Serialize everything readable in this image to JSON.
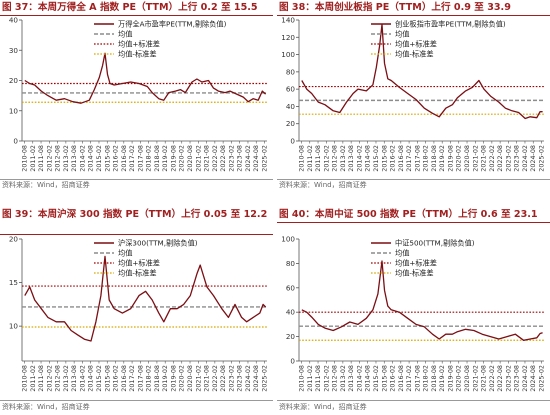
{
  "source_text": "资料来源：Wind，招商证券",
  "colors": {
    "series": "#7b0f14",
    "mean": "#8c8c8c",
    "upper": "#a00000",
    "lower": "#d9a600",
    "title": "#a01f1f"
  },
  "chart_data": [
    {
      "type": "line",
      "title": "图 37：本周万得全 A 指数 PE（TTM）上行 0.2 至 15.5",
      "x_ticks": [
        "2010-08",
        "2011-02",
        "2011-08",
        "2012-02",
        "2012-08",
        "2013-02",
        "2013-08",
        "2014-02",
        "2014-08",
        "2015-02",
        "2015-08",
        "2016-02",
        "2016-08",
        "2017-02",
        "2017-08",
        "2018-02",
        "2018-08",
        "2019-02",
        "2019-08",
        "2020-02",
        "2020-08",
        "2021-02",
        "2021-08",
        "2022-02",
        "2022-08",
        "2023-02",
        "2023-08",
        "2024-02",
        "2024-08",
        "2025-02"
      ],
      "ylim": [
        0,
        40
      ],
      "y_ticks": [
        0,
        10,
        20,
        30,
        40
      ],
      "series": [
        {
          "name": "万得全A市盈率PE(TTM,剔除负值)",
          "x": [
            2010.6,
            2010.9,
            2011.2,
            2011.6,
            2012.0,
            2012.5,
            2013.0,
            2013.5,
            2014.0,
            2014.5,
            2014.8,
            2015.1,
            2015.3,
            2015.45,
            2015.6,
            2015.75,
            2016.0,
            2016.5,
            2017.0,
            2017.5,
            2018.0,
            2018.3,
            2018.7,
            2019.0,
            2019.3,
            2019.7,
            2020.0,
            2020.3,
            2020.7,
            2021.0,
            2021.3,
            2021.7,
            2022.0,
            2022.3,
            2022.7,
            2023.0,
            2023.4,
            2023.8,
            2024.1,
            2024.4,
            2024.7,
            2024.95,
            2025.15
          ],
          "y": [
            20.0,
            19.0,
            18.5,
            16.5,
            15.0,
            13.5,
            14.0,
            13.0,
            12.5,
            13.5,
            17.0,
            21.0,
            25.0,
            29.0,
            22.0,
            19.0,
            18.5,
            19.0,
            19.5,
            19.0,
            18.0,
            16.0,
            14.0,
            13.5,
            16.0,
            16.5,
            17.0,
            16.0,
            19.5,
            20.5,
            19.5,
            20.0,
            17.5,
            16.5,
            16.0,
            16.5,
            15.5,
            14.5,
            13.0,
            14.0,
            13.5,
            16.5,
            15.5
          ]
        }
      ],
      "mean": 15.9,
      "upper": 19.0,
      "lower": 12.8,
      "legend": [
        "万得全A市盈率PE(TTM,剔除负值)",
        "均值",
        "均值+标准差",
        "均值-标准差"
      ]
    },
    {
      "type": "line",
      "title": "图 38：本周创业板指 PE（TTM）上行 0.9 至 33.9",
      "x_ticks": [
        "2010-08",
        "2011-02",
        "2011-08",
        "2012-02",
        "2012-08",
        "2013-02",
        "2013-08",
        "2014-02",
        "2014-08",
        "2015-02",
        "2015-08",
        "2016-02",
        "2016-08",
        "2017-02",
        "2017-08",
        "2018-02",
        "2018-08",
        "2019-02",
        "2019-08",
        "2020-02",
        "2020-08",
        "2021-02",
        "2021-08",
        "2022-02",
        "2022-08",
        "2023-02",
        "2023-08",
        "2024-02",
        "2024-08",
        "2025-02"
      ],
      "ylim": [
        0,
        140
      ],
      "y_ticks": [
        0,
        20,
        40,
        60,
        80,
        100,
        120,
        140
      ],
      "series": [
        {
          "name": "创业板指市盈率PE(TTM,剔除负值)",
          "x": [
            2010.6,
            2010.9,
            2011.2,
            2011.6,
            2012.0,
            2012.5,
            2012.9,
            2013.3,
            2013.7,
            2014.0,
            2014.5,
            2014.9,
            2015.1,
            2015.3,
            2015.45,
            2015.6,
            2015.8,
            2016.0,
            2016.5,
            2017.0,
            2017.5,
            2018.0,
            2018.5,
            2018.9,
            2019.3,
            2019.7,
            2020.0,
            2020.5,
            2020.9,
            2021.3,
            2021.6,
            2022.0,
            2022.5,
            2022.9,
            2023.3,
            2023.7,
            2024.1,
            2024.4,
            2024.8,
            2025.0,
            2025.15
          ],
          "y": [
            70.0,
            60.0,
            55.0,
            45.0,
            42.0,
            35.0,
            33.0,
            45.0,
            55.0,
            60.0,
            58.0,
            65.0,
            85.0,
            110.0,
            135.0,
            90.0,
            72.0,
            70.0,
            62.0,
            55.0,
            48.0,
            38.0,
            32.0,
            28.0,
            38.0,
            42.0,
            50.0,
            58.0,
            62.0,
            70.0,
            60.0,
            52.0,
            45.0,
            38.0,
            35.0,
            33.0,
            26.0,
            28.0,
            27.0,
            34.0,
            33.9
          ]
        }
      ],
      "mean": 47.0,
      "upper": 63.0,
      "lower": 31.0,
      "legend": [
        "创业板指市盈率PE(TTM,剔除负值)",
        "均值",
        "均值+标准差",
        "均值-标准差"
      ]
    },
    {
      "type": "line",
      "title": "图 39：本周沪深 300 指数 PE（TTM）上行 0.05 至 12.2",
      "x_ticks": [
        "2010-08",
        "2011-02",
        "2011-08",
        "2012-02",
        "2012-08",
        "2013-02",
        "2013-08",
        "2014-02",
        "2014-08",
        "2015-02",
        "2015-08",
        "2016-02",
        "2016-08",
        "2017-02",
        "2017-08",
        "2018-02",
        "2018-08",
        "2019-02",
        "2019-08",
        "2020-02",
        "2020-08",
        "2021-02",
        "2021-08",
        "2022-02",
        "2022-08",
        "2023-02",
        "2023-08",
        "2024-02",
        "2024-08",
        "2025-02"
      ],
      "ylim": [
        6,
        20
      ],
      "y_ticks": [
        10,
        15,
        20
      ],
      "series": [
        {
          "name": "沪深300(TTM,剔除负值)",
          "x": [
            2010.6,
            2010.9,
            2011.2,
            2011.6,
            2012.0,
            2012.5,
            2013.0,
            2013.4,
            2013.8,
            2014.2,
            2014.6,
            2014.9,
            2015.2,
            2015.45,
            2015.7,
            2016.0,
            2016.5,
            2017.0,
            2017.5,
            2017.9,
            2018.3,
            2018.7,
            2019.0,
            2019.4,
            2019.8,
            2020.2,
            2020.6,
            2021.0,
            2021.2,
            2021.6,
            2022.0,
            2022.5,
            2022.9,
            2023.3,
            2023.7,
            2024.0,
            2024.4,
            2024.8,
            2025.0,
            2025.15
          ],
          "y": [
            13.5,
            14.5,
            13.0,
            12.0,
            11.0,
            10.5,
            10.5,
            9.5,
            9.0,
            8.5,
            8.3,
            10.5,
            13.5,
            18.0,
            13.0,
            12.0,
            11.5,
            12.0,
            13.5,
            14.0,
            13.0,
            11.5,
            10.5,
            12.0,
            12.0,
            12.5,
            13.5,
            16.0,
            17.0,
            14.5,
            13.5,
            12.0,
            11.0,
            12.5,
            11.0,
            10.5,
            11.0,
            11.5,
            12.5,
            12.2
          ]
        }
      ],
      "mean": 12.2,
      "upper": 14.6,
      "lower": 9.9,
      "legend": [
        "沪深300(TTM,剔除负值)",
        "均值",
        "均值+标准差",
        "均值-标准差"
      ]
    },
    {
      "type": "line",
      "title": "图 40：本周中证 500 指数 PE（TTM）上行 0.6 至 23.1",
      "x_ticks": [
        "2010-08",
        "2011-02",
        "2011-08",
        "2012-02",
        "2012-08",
        "2013-02",
        "2013-08",
        "2014-02",
        "2014-08",
        "2015-02",
        "2015-08",
        "2016-02",
        "2016-08",
        "2017-02",
        "2017-08",
        "2018-02",
        "2018-08",
        "2019-02",
        "2019-08",
        "2020-02",
        "2020-08",
        "2021-02",
        "2021-08",
        "2022-02",
        "2022-08",
        "2023-02",
        "2023-08",
        "2024-02",
        "2024-08",
        "2025-02"
      ],
      "ylim": [
        0,
        100
      ],
      "y_ticks": [
        0,
        20,
        40,
        60,
        80,
        100
      ],
      "series": [
        {
          "name": "中证500(TTM,剔除负值)",
          "x": [
            2010.6,
            2010.9,
            2011.2,
            2011.6,
            2012.0,
            2012.5,
            2013.0,
            2013.5,
            2014.0,
            2014.5,
            2014.9,
            2015.2,
            2015.45,
            2015.6,
            2015.8,
            2016.0,
            2016.5,
            2017.0,
            2017.5,
            2018.0,
            2018.5,
            2018.9,
            2019.3,
            2019.7,
            2020.0,
            2020.5,
            2021.0,
            2021.5,
            2022.0,
            2022.5,
            2023.0,
            2023.5,
            2024.0,
            2024.4,
            2024.8,
            2025.0,
            2025.15
          ],
          "y": [
            42.0,
            40.0,
            36.0,
            30.0,
            27.0,
            25.0,
            28.0,
            32.0,
            30.0,
            35.0,
            42.0,
            55.0,
            82.0,
            58.0,
            45.0,
            42.0,
            40.0,
            35.0,
            30.0,
            28.0,
            22.0,
            18.0,
            22.0,
            22.0,
            24.0,
            26.0,
            25.0,
            22.0,
            20.0,
            18.0,
            20.0,
            22.0,
            17.0,
            18.0,
            19.0,
            22.5,
            23.1
          ]
        }
      ],
      "mean": 28.5,
      "upper": 40.0,
      "lower": 17.0,
      "legend": [
        "中证500(TTM,剔除负值)",
        "均值",
        "均值+标准差",
        "均值-标准差"
      ]
    }
  ]
}
